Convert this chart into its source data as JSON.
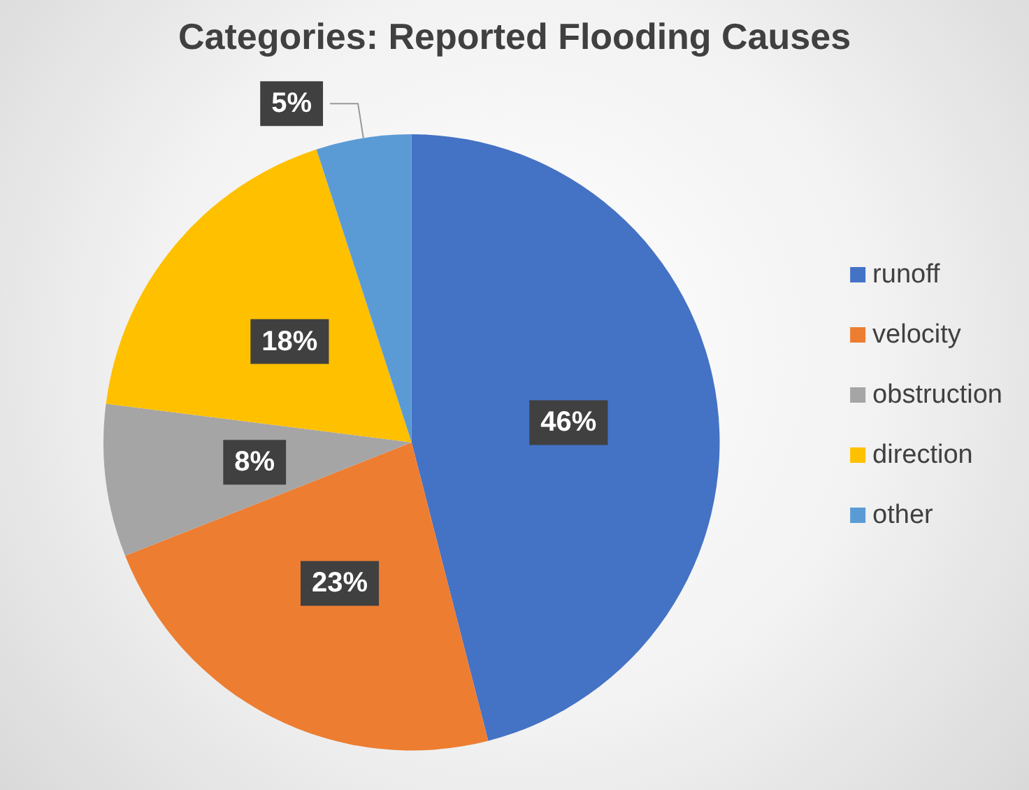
{
  "chart_data": {
    "type": "pie",
    "title": "Categories: Reported Flooding Causes",
    "categories": [
      "runoff",
      "velocity",
      "obstruction",
      "direction",
      "other"
    ],
    "values": [
      46,
      23,
      8,
      18,
      5
    ],
    "colors": [
      "#4472c4",
      "#ed7d31",
      "#a5a5a5",
      "#ffc000",
      "#5b9bd5"
    ],
    "value_labels": [
      "46%",
      "23%",
      "8%",
      "18%",
      "5%"
    ],
    "legend": "right"
  }
}
